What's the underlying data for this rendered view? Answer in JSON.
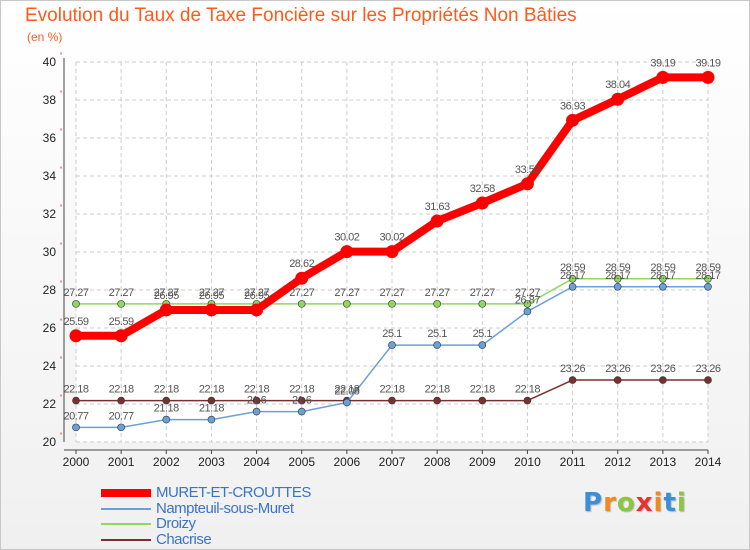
{
  "chart_data": {
    "type": "line",
    "title": "Evolution du Taux de Taxe Foncière sur les Propriétés Non Bâties",
    "unit_label": "(en %)",
    "xlabel": "",
    "ylabel": "",
    "categories": [
      "2000",
      "2001",
      "2002",
      "2003",
      "2004",
      "2005",
      "2006",
      "2007",
      "2008",
      "2009",
      "2010",
      "2011",
      "2012",
      "2013",
      "2014"
    ],
    "ylim": [
      20,
      40
    ],
    "yticks": [
      "20",
      "22",
      "24",
      "26",
      "28",
      "30",
      "32",
      "34",
      "36",
      "38",
      "40"
    ],
    "grid": true,
    "legend_position": "bottom-left",
    "series": [
      {
        "name": "MURET-ET-CROUTTES",
        "color": "#ff0000",
        "values": [
          25.59,
          25.59,
          26.95,
          26.95,
          26.95,
          28.62,
          30.02,
          30.02,
          31.63,
          32.58,
          33.59,
          36.93,
          38.04,
          39.19,
          39.19
        ],
        "labels": [
          "25.59",
          "25.59",
          "26.95",
          "26.95",
          "26.95",
          "28.62",
          "30.02",
          "30.02",
          "31.63",
          "32.58",
          "33.59",
          "36.93",
          "38.04",
          "39.19",
          "39.19"
        ]
      },
      {
        "name": "Nampteuil-sous-Muret",
        "color": "#6aa0d8",
        "values": [
          20.77,
          20.77,
          21.18,
          21.18,
          21.6,
          21.6,
          22.08,
          25.1,
          25.1,
          25.1,
          26.87,
          28.17,
          28.17,
          28.17,
          28.17
        ],
        "labels": [
          "20.77",
          "20.77",
          "21.18",
          "21.18",
          "21.6",
          "21.6",
          "22.08",
          "25.1",
          "25.1",
          "25.1",
          "26.87",
          "28.17",
          "28.17",
          "28.17",
          "28.17"
        ]
      },
      {
        "name": "Droizy",
        "color": "#8ed85e",
        "values": [
          27.27,
          27.27,
          27.27,
          27.27,
          27.27,
          27.27,
          27.27,
          27.27,
          27.27,
          27.27,
          27.27,
          28.59,
          28.59,
          28.59,
          28.59
        ],
        "labels": [
          "27.27",
          "27.27",
          "27.27",
          "27.27",
          "27.27",
          "27.27",
          "27.27",
          "27.27",
          "27.27",
          "27.27",
          "27.27",
          "28.59",
          "28.59",
          "28.59",
          "28.59"
        ]
      },
      {
        "name": "Chacrise",
        "color": "#7a3030",
        "values": [
          22.18,
          22.18,
          22.18,
          22.18,
          22.18,
          22.18,
          22.18,
          22.18,
          22.18,
          22.18,
          22.18,
          23.26,
          23.26,
          23.26,
          23.26
        ],
        "labels": [
          "22.18",
          "22.18",
          "22.18",
          "22.18",
          "22.18",
          "22.18",
          "22.18",
          "22.18",
          "22.18",
          "22.18",
          "22.18",
          "23.26",
          "23.26",
          "23.26",
          "23.26"
        ]
      }
    ]
  },
  "brand": {
    "letters": [
      "P",
      "r",
      "o",
      "x",
      "i",
      "t",
      "i"
    ],
    "colors": [
      "#3b8fd9",
      "#f08a1c",
      "#8cc63f",
      "#e8322e",
      "#f08a1c",
      "#3b8fd9",
      "#8cc63f"
    ]
  }
}
